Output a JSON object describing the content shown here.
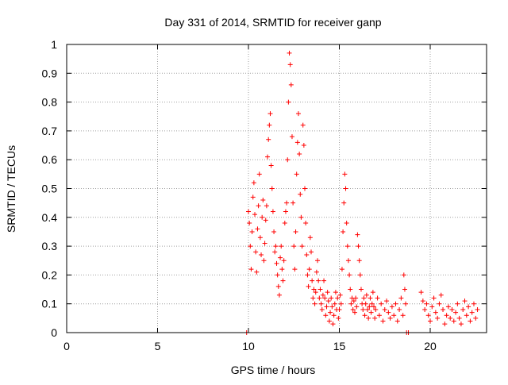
{
  "chart_data": {
    "type": "scatter",
    "title": "Day 331 of 2014, SRMTID for receiver ganp",
    "xlabel": "GPS time / hours",
    "ylabel": "SRMTID / TECUs",
    "xlim": [
      0,
      23.1
    ],
    "ylim": [
      0,
      1
    ],
    "xticks": [
      0,
      5,
      10,
      15,
      20
    ],
    "yticks": [
      0,
      0.1,
      0.2,
      0.3,
      0.4,
      0.5,
      0.6,
      0.7,
      0.8,
      0.9,
      1
    ],
    "grid": true,
    "marker": "+",
    "series": [
      {
        "name": "SRMTID",
        "color": "#ff0000",
        "points": [
          [
            9.9,
            0.0
          ],
          [
            18.7,
            0.0
          ],
          [
            18.8,
            0.0
          ],
          [
            10.0,
            0.42
          ],
          [
            10.05,
            0.38
          ],
          [
            10.1,
            0.3
          ],
          [
            10.15,
            0.22
          ],
          [
            10.2,
            0.35
          ],
          [
            10.25,
            0.47
          ],
          [
            10.3,
            0.52
          ],
          [
            10.35,
            0.41
          ],
          [
            10.4,
            0.28
          ],
          [
            10.45,
            0.21
          ],
          [
            10.5,
            0.36
          ],
          [
            10.55,
            0.44
          ],
          [
            10.6,
            0.55
          ],
          [
            10.65,
            0.33
          ],
          [
            10.7,
            0.27
          ],
          [
            10.75,
            0.4
          ],
          [
            10.8,
            0.46
          ],
          [
            10.85,
            0.25
          ],
          [
            10.9,
            0.31
          ],
          [
            10.95,
            0.39
          ],
          [
            11.0,
            0.44
          ],
          [
            11.05,
            0.61
          ],
          [
            11.1,
            0.67
          ],
          [
            11.15,
            0.72
          ],
          [
            11.2,
            0.76
          ],
          [
            11.25,
            0.58
          ],
          [
            11.3,
            0.5
          ],
          [
            11.35,
            0.42
          ],
          [
            11.4,
            0.35
          ],
          [
            11.45,
            0.28
          ],
          [
            11.5,
            0.3
          ],
          [
            11.55,
            0.24
          ],
          [
            11.6,
            0.2
          ],
          [
            11.65,
            0.16
          ],
          [
            11.7,
            0.13
          ],
          [
            11.75,
            0.26
          ],
          [
            11.8,
            0.3
          ],
          [
            11.85,
            0.22
          ],
          [
            11.9,
            0.18
          ],
          [
            11.95,
            0.25
          ],
          [
            12.0,
            0.38
          ],
          [
            12.05,
            0.42
          ],
          [
            12.1,
            0.45
          ],
          [
            12.15,
            0.6
          ],
          [
            12.2,
            0.8
          ],
          [
            12.25,
            0.97
          ],
          [
            12.3,
            0.93
          ],
          [
            12.35,
            0.86
          ],
          [
            12.4,
            0.68
          ],
          [
            12.45,
            0.45
          ],
          [
            12.5,
            0.3
          ],
          [
            12.55,
            0.22
          ],
          [
            12.6,
            0.35
          ],
          [
            12.65,
            0.55
          ],
          [
            12.7,
            0.66
          ],
          [
            12.75,
            0.76
          ],
          [
            12.8,
            0.62
          ],
          [
            12.85,
            0.48
          ],
          [
            12.9,
            0.4
          ],
          [
            12.95,
            0.3
          ],
          [
            13.0,
            0.72
          ],
          [
            13.05,
            0.65
          ],
          [
            13.1,
            0.5
          ],
          [
            13.15,
            0.38
          ],
          [
            13.2,
            0.27
          ],
          [
            13.25,
            0.2
          ],
          [
            13.3,
            0.16
          ],
          [
            13.35,
            0.22
          ],
          [
            13.4,
            0.33
          ],
          [
            13.45,
            0.28
          ],
          [
            13.5,
            0.18
          ],
          [
            13.55,
            0.12
          ],
          [
            13.6,
            0.15
          ],
          [
            13.65,
            0.1
          ],
          [
            13.7,
            0.14
          ],
          [
            13.75,
            0.21
          ],
          [
            13.8,
            0.25
          ],
          [
            13.85,
            0.18
          ],
          [
            13.9,
            0.12
          ],
          [
            13.95,
            0.15
          ],
          [
            14.0,
            0.1
          ],
          [
            14.05,
            0.08
          ],
          [
            14.1,
            0.13
          ],
          [
            14.15,
            0.18
          ],
          [
            14.2,
            0.12
          ],
          [
            14.25,
            0.06
          ],
          [
            14.3,
            0.09
          ],
          [
            14.35,
            0.14
          ],
          [
            14.4,
            0.11
          ],
          [
            14.45,
            0.04
          ],
          [
            14.5,
            0.07
          ],
          [
            14.55,
            0.12
          ],
          [
            14.6,
            0.09
          ],
          [
            14.65,
            0.03
          ],
          [
            14.7,
            0.06
          ],
          [
            14.75,
            0.1
          ],
          [
            14.8,
            0.14
          ],
          [
            14.85,
            0.08
          ],
          [
            14.9,
            0.12
          ],
          [
            14.95,
            0.05
          ],
          [
            15.0,
            0.08
          ],
          [
            15.05,
            0.13
          ],
          [
            15.1,
            0.1
          ],
          [
            15.15,
            0.22
          ],
          [
            15.2,
            0.35
          ],
          [
            15.25,
            0.45
          ],
          [
            15.3,
            0.55
          ],
          [
            15.35,
            0.5
          ],
          [
            15.4,
            0.38
          ],
          [
            15.45,
            0.3
          ],
          [
            15.5,
            0.25
          ],
          [
            15.55,
            0.2
          ],
          [
            15.6,
            0.15
          ],
          [
            15.65,
            0.1
          ],
          [
            15.7,
            0.12
          ],
          [
            15.75,
            0.08
          ],
          [
            15.8,
            0.11
          ],
          [
            15.85,
            0.07
          ],
          [
            15.9,
            0.12
          ],
          [
            15.95,
            0.09
          ],
          [
            16.0,
            0.34
          ],
          [
            16.05,
            0.3
          ],
          [
            16.1,
            0.25
          ],
          [
            16.15,
            0.2
          ],
          [
            16.2,
            0.15
          ],
          [
            16.25,
            0.1
          ],
          [
            16.3,
            0.08
          ],
          [
            16.35,
            0.12
          ],
          [
            16.4,
            0.06
          ],
          [
            16.45,
            0.1
          ],
          [
            16.5,
            0.13
          ],
          [
            16.55,
            0.08
          ],
          [
            16.6,
            0.05
          ],
          [
            16.65,
            0.09
          ],
          [
            16.7,
            0.12
          ],
          [
            16.75,
            0.07
          ],
          [
            16.8,
            0.1
          ],
          [
            16.85,
            0.14
          ],
          [
            16.9,
            0.09
          ],
          [
            16.95,
            0.05
          ],
          [
            17.0,
            0.08
          ],
          [
            17.1,
            0.12
          ],
          [
            17.2,
            0.06
          ],
          [
            17.3,
            0.1
          ],
          [
            17.4,
            0.04
          ],
          [
            17.5,
            0.08
          ],
          [
            17.6,
            0.11
          ],
          [
            17.7,
            0.07
          ],
          [
            17.8,
            0.05
          ],
          [
            17.9,
            0.09
          ],
          [
            18.0,
            0.06
          ],
          [
            18.1,
            0.1
          ],
          [
            18.2,
            0.04
          ],
          [
            18.3,
            0.08
          ],
          [
            18.4,
            0.12
          ],
          [
            18.5,
            0.06
          ],
          [
            18.55,
            0.2
          ],
          [
            18.6,
            0.15
          ],
          [
            18.65,
            0.1
          ],
          [
            19.5,
            0.14
          ],
          [
            19.6,
            0.11
          ],
          [
            19.7,
            0.08
          ],
          [
            19.8,
            0.1
          ],
          [
            19.9,
            0.06
          ],
          [
            20.0,
            0.04
          ],
          [
            20.1,
            0.09
          ],
          [
            20.2,
            0.12
          ],
          [
            20.3,
            0.07
          ],
          [
            20.4,
            0.05
          ],
          [
            20.5,
            0.1
          ],
          [
            20.6,
            0.13
          ],
          [
            20.7,
            0.08
          ],
          [
            20.8,
            0.03
          ],
          [
            20.9,
            0.06
          ],
          [
            21.0,
            0.09
          ],
          [
            21.1,
            0.05
          ],
          [
            21.2,
            0.08
          ],
          [
            21.3,
            0.04
          ],
          [
            21.4,
            0.07
          ],
          [
            21.5,
            0.1
          ],
          [
            21.6,
            0.05
          ],
          [
            21.7,
            0.03
          ],
          [
            21.8,
            0.08
          ],
          [
            21.9,
            0.11
          ],
          [
            22.0,
            0.06
          ],
          [
            22.1,
            0.09
          ],
          [
            22.2,
            0.04
          ],
          [
            22.3,
            0.07
          ],
          [
            22.4,
            0.1
          ],
          [
            22.5,
            0.05
          ],
          [
            22.6,
            0.08
          ]
        ]
      }
    ]
  }
}
